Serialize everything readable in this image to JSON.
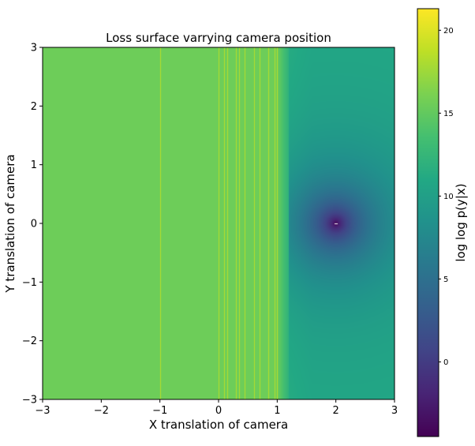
{
  "chart_data": {
    "type": "heatmap",
    "title": "Loss surface varrying camera position",
    "xlabel": "X translation of camera",
    "ylabel": "Y translation of camera",
    "xlim": [
      -3,
      3
    ],
    "ylim": [
      -3,
      3
    ],
    "x_ticks": [
      -3,
      -2,
      -1,
      0,
      1,
      2,
      3
    ],
    "y_ticks": [
      -3,
      -2,
      -1,
      0,
      1,
      2,
      3
    ],
    "x_tick_labels": [
      "−3",
      "−2",
      "−1",
      "0",
      "1",
      "2",
      "3"
    ],
    "y_tick_labels": [
      "−3",
      "−2",
      "−1",
      "0",
      "1",
      "2",
      "3"
    ],
    "colormap": "viridis",
    "grid": false,
    "colorbar": {
      "label": "log log p(y|x)",
      "range": [
        -4.5,
        21.3
      ],
      "ticks": [
        0,
        5,
        10,
        15,
        20
      ],
      "tick_labels": [
        "0",
        "5",
        "10",
        "15",
        "20"
      ]
    },
    "regions": [
      {
        "x_range": [
          -3,
          1.0
        ],
        "value": 15.5,
        "description": "plateau"
      },
      {
        "x_range": [
          1.0,
          1.2
        ],
        "value_start": 15.5,
        "value_end": 12.0,
        "description": "transition"
      },
      {
        "x_range": [
          1.2,
          3
        ],
        "value_far": 11.0,
        "min_at": [
          2.0,
          0.0
        ],
        "min_value": -4.5
      }
    ],
    "vertical_streaks_x": [
      -1.0,
      0.0,
      0.1,
      0.15,
      0.3,
      0.35,
      0.45,
      0.6,
      0.7,
      0.85,
      0.95,
      1.0
    ],
    "streak_value": 18.5,
    "minimum": {
      "x": 2.0,
      "y": 0.0
    }
  }
}
